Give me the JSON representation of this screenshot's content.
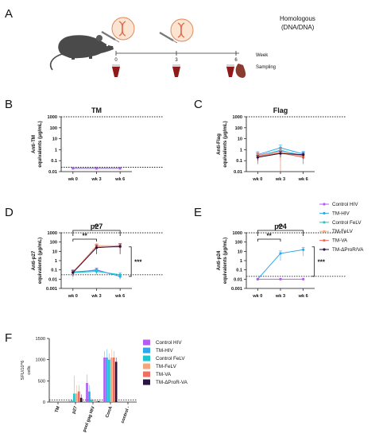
{
  "panel_letters": [
    "A",
    "B",
    "C",
    "D",
    "E",
    "F"
  ],
  "schematic": {
    "header_line1": "Homologous",
    "header_line2": "(DNA/DNA)",
    "timeline_ticks": [
      "0",
      "3",
      "6"
    ],
    "week_label": "Week",
    "sampling_label": "Sampling"
  },
  "colors": {
    "Control HIV": "#b45cf0",
    "TM-HIV": "#2ea7ef",
    "Control FeLV": "#1cc6cf",
    "TM-FeLV": "#f4a77c",
    "TM-VA": "#ee6f62",
    "TM-ΔProR/VA": "#2a1442",
    "TM-ΔProR-VA": "#2a1442"
  },
  "legend_top": {
    "entries": [
      "Control HIV",
      "TM-HIV",
      "Control FeLV",
      "TM-FeLV",
      "TM-VA",
      "TM-ΔProR/VA"
    ]
  },
  "legend_bottom": {
    "entries": [
      "Control HIV",
      "TM-HIV",
      "Control FeLV",
      "TM-FeLV",
      "TM-VA",
      "TM-ΔProR-VA"
    ]
  },
  "chart_data": [
    {
      "panel": "B",
      "type": "line",
      "title": "TM",
      "ylabel": [
        "Anti-TM",
        "equivalents (μg/mL)"
      ],
      "x": [
        "wk 0",
        "wk 3",
        "wk 6"
      ],
      "y_scale": "log",
      "ylim": [
        0.01,
        1000
      ],
      "yticks": [
        "0.01",
        "0.1",
        "1",
        "10",
        "100",
        "1000"
      ],
      "reference_lines": [
        1000,
        0.025
      ],
      "series": [
        {
          "name": "TM-HIV",
          "values": [
            0.02,
            0.02,
            0.02
          ],
          "err": [
            0,
            0,
            0
          ]
        },
        {
          "name": "Control HIV",
          "values": [
            0.02,
            0.02,
            0.02
          ],
          "err": [
            0,
            0,
            0
          ]
        }
      ],
      "significance": []
    },
    {
      "panel": "C",
      "type": "line",
      "title": "Flag",
      "ylabel": [
        "Anti-Flag",
        "equivalents (μg/mL)"
      ],
      "x": [
        "wk 0",
        "wk 3",
        "wk 6"
      ],
      "y_scale": "log",
      "ylim": [
        0.01,
        1000
      ],
      "yticks": [
        "0.01",
        "0.1",
        "1",
        "10",
        "100",
        "1000"
      ],
      "reference_lines": [
        1000
      ],
      "series": [
        {
          "name": "Control HIV",
          "values": [
            0.3,
            0.8,
            0.3
          ],
          "err": [
            0.25,
            0.5,
            0.25
          ]
        },
        {
          "name": "TM-HIV",
          "values": [
            0.35,
            1.5,
            0.4
          ],
          "err": [
            0.3,
            1.2,
            0.3
          ]
        },
        {
          "name": "Control FeLV",
          "values": [
            0.25,
            0.9,
            0.25
          ],
          "err": [
            0.2,
            0.6,
            0.2
          ]
        },
        {
          "name": "TM-FeLV",
          "values": [
            0.3,
            0.6,
            0.25
          ],
          "err": [
            0.2,
            0.5,
            0.2
          ]
        },
        {
          "name": "TM-VA",
          "values": [
            0.25,
            0.5,
            0.2
          ],
          "err": [
            0.2,
            0.9,
            0.15
          ]
        },
        {
          "name": "TM-ΔProR/VA",
          "values": [
            0.2,
            0.45,
            0.35
          ],
          "err": [
            0.1,
            0.25,
            0.2
          ]
        }
      ],
      "significance": []
    },
    {
      "panel": "D",
      "type": "line",
      "title": "p27",
      "ylabel": [
        "Anti-p27",
        "equivalents (μg/mL)"
      ],
      "x": [
        "wk 0",
        "wk 3",
        "wk 6"
      ],
      "y_scale": "log",
      "ylim": [
        0.001,
        1000
      ],
      "yticks": [
        "0.001",
        "0.01",
        "0.1",
        "1",
        "10",
        "100",
        "1000"
      ],
      "reference_lines": [
        1000,
        0.03
      ],
      "series": [
        {
          "name": "Control HIV",
          "values": [
            0.05,
            0.1,
            0.02
          ],
          "err": [
            0.03,
            0.06,
            0.01
          ]
        },
        {
          "name": "TM-HIV",
          "values": [
            0.06,
            0.09,
            0.02
          ],
          "err": [
            0.04,
            0.05,
            0.01
          ]
        },
        {
          "name": "Control FeLV",
          "values": [
            0.05,
            0.07,
            0.03
          ],
          "err": [
            0.03,
            0.04,
            0.02
          ]
        },
        {
          "name": "TM-FeLV",
          "values": [
            0.05,
            40,
            40
          ],
          "err": [
            0.04,
            30,
            30
          ]
        },
        {
          "name": "TM-VA",
          "values": [
            0.06,
            30,
            30
          ],
          "err": [
            0.04,
            25,
            25
          ]
        },
        {
          "name": "TM-ΔProR/VA",
          "values": [
            0.05,
            25,
            35
          ],
          "err": [
            0.03,
            20,
            30
          ]
        }
      ],
      "significance": [
        "**",
        "**",
        "***"
      ]
    },
    {
      "panel": "E",
      "type": "line",
      "title": "p24",
      "ylabel": [
        "Anti-p24",
        "equivalents (μg/mL)"
      ],
      "x": [
        "wk 0",
        "wk 3",
        "wk 6"
      ],
      "y_scale": "log",
      "ylim": [
        0.001,
        1000
      ],
      "yticks": [
        "0.001",
        "0.01",
        "0.1",
        "1",
        "10",
        "100",
        "1000"
      ],
      "reference_lines": [
        1000,
        0.02
      ],
      "series": [
        {
          "name": "TM-HIV",
          "values": [
            0.01,
            6,
            15
          ],
          "err": [
            0,
            5,
            12
          ]
        },
        {
          "name": "Control HIV",
          "values": [
            0.01,
            0.01,
            0.01
          ],
          "err": [
            0,
            0,
            0
          ]
        }
      ],
      "significance": [
        "**",
        "**",
        "***"
      ]
    },
    {
      "panel": "F",
      "type": "bar",
      "ylabel": [
        "SFU/10^6",
        "cells"
      ],
      "categories": [
        "TM",
        "p27",
        "pool gag HIV",
        "ConA",
        "control -"
      ],
      "yticks": [
        "0",
        "500",
        "1000",
        "1500"
      ],
      "ylim": [
        0,
        1500
      ],
      "reference_lines": [
        50
      ],
      "series": [
        {
          "name": "Control HIV",
          "values": [
            0,
            20,
            450,
            1050,
            0
          ],
          "err": [
            0,
            15,
            200,
            150,
            0
          ]
        },
        {
          "name": "TM-HIV",
          "values": [
            0,
            30,
            250,
            1050,
            0
          ],
          "err": [
            0,
            20,
            150,
            200,
            0
          ]
        },
        {
          "name": "Control FeLV",
          "values": [
            0,
            200,
            50,
            1000,
            0
          ],
          "err": [
            0,
            420,
            30,
            150,
            0
          ]
        },
        {
          "name": "TM-FeLV",
          "values": [
            0,
            200,
            30,
            1050,
            0
          ],
          "err": [
            0,
            200,
            20,
            200,
            0
          ]
        },
        {
          "name": "TM-VA",
          "values": [
            0,
            250,
            20,
            1050,
            0
          ],
          "err": [
            0,
            150,
            15,
            150,
            0
          ]
        },
        {
          "name": "TM-ΔProR-VA",
          "values": [
            0,
            100,
            20,
            950,
            0
          ],
          "err": [
            0,
            80,
            10,
            100,
            0
          ]
        }
      ]
    }
  ]
}
